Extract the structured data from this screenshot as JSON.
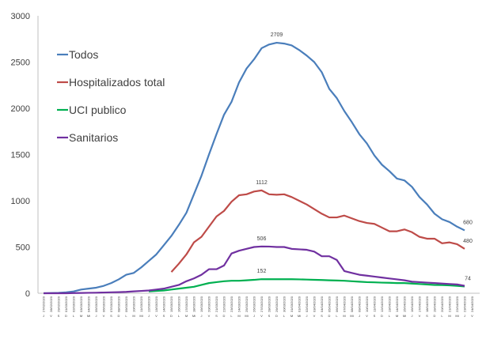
{
  "chart_data": {
    "type": "line",
    "categories": [
      "27/02/2020",
      "28/02/2020",
      "29/02/2020",
      "01/03/2020",
      "02/03/2020",
      "03/03/2020",
      "04/03/2020",
      "05/03/2020",
      "06/03/2020",
      "07/03/2020",
      "08/03/2020",
      "09/03/2020",
      "10/03/2020",
      "11/03/2020",
      "12/03/2020",
      "13/03/2020",
      "14/03/2020",
      "15/03/2020",
      "16/03/2020",
      "17/03/2020",
      "18/03/2020",
      "19/03/2020",
      "20/03/2020",
      "21/03/2020",
      "22/03/2020",
      "23/03/2020",
      "24/03/2020",
      "25/03/2020",
      "26/03/2020",
      "27/03/2020",
      "28/03/2020",
      "29/03/2020",
      "30/03/2020",
      "31/03/2020",
      "01/04/2020",
      "02/04/2020",
      "03/04/2020",
      "04/04/2020",
      "05/04/2020",
      "06/04/2020",
      "07/04/2020",
      "08/04/2020",
      "09/04/2020",
      "10/04/2020",
      "11/04/2020",
      "12/04/2020",
      "13/04/2020",
      "14/04/2020",
      "15/04/2020",
      "16/04/2020",
      "17/04/2020",
      "18/04/2020",
      "19/04/2020",
      "20/04/2020",
      "21/04/2020",
      "22/04/2020",
      "23/04/2020",
      "24/04/2020"
    ],
    "weekdays": [
      "J",
      "V",
      "S",
      "D",
      "L",
      "M",
      "Mi",
      "J",
      "V",
      "S",
      "D",
      "L",
      "M",
      "Mi",
      "J",
      "V",
      "S",
      "D",
      "L",
      "M",
      "Mi",
      "J",
      "V",
      "S",
      "D",
      "L",
      "M",
      "Mi",
      "J",
      "V",
      "S",
      "D",
      "L",
      "M",
      "Mi",
      "J",
      "V",
      "S",
      "D",
      "L",
      "M",
      "Mi",
      "J",
      "V",
      "S",
      "D",
      "L",
      "M",
      "Mi",
      "J",
      "V",
      "S",
      "D",
      "L",
      "M",
      "Mi",
      "J",
      "V"
    ],
    "series": [
      {
        "name": "Todos",
        "color": "#4a7ebb",
        "label_indices": [
          31,
          56
        ],
        "values": [
          0,
          2,
          5,
          10,
          20,
          40,
          50,
          60,
          80,
          110,
          150,
          200,
          220,
          280,
          350,
          420,
          520,
          620,
          740,
          870,
          1070,
          1270,
          1500,
          1720,
          1930,
          2070,
          2280,
          2430,
          2530,
          2650,
          2690,
          2709,
          2700,
          2680,
          2630,
          2570,
          2500,
          2390,
          2210,
          2110,
          1970,
          1850,
          1720,
          1620,
          1490,
          1390,
          1320,
          1240,
          1220,
          1150,
          1040,
          960,
          860,
          800,
          770,
          720,
          680,
          null
        ]
      },
      {
        "name": "Hospitalizados total",
        "color": "#be4b48",
        "label_indices": [
          29,
          56
        ],
        "values": [
          null,
          null,
          null,
          null,
          null,
          null,
          null,
          null,
          null,
          null,
          null,
          null,
          null,
          null,
          null,
          null,
          null,
          230,
          320,
          420,
          550,
          610,
          720,
          830,
          890,
          990,
          1060,
          1070,
          1100,
          1112,
          1070,
          1065,
          1070,
          1040,
          1000,
          960,
          910,
          860,
          820,
          820,
          840,
          810,
          780,
          760,
          750,
          710,
          670,
          670,
          690,
          660,
          610,
          590,
          590,
          540,
          550,
          530,
          480,
          null
        ]
      },
      {
        "name": "UCI publico",
        "color": "#00b050",
        "label_indices": [
          29,
          56
        ],
        "values": [
          null,
          null,
          null,
          null,
          null,
          null,
          null,
          null,
          null,
          null,
          null,
          null,
          null,
          null,
          20,
          25,
          30,
          40,
          50,
          60,
          70,
          90,
          110,
          120,
          130,
          135,
          135,
          140,
          145,
          152,
          152,
          152,
          152,
          152,
          150,
          148,
          145,
          143,
          140,
          138,
          135,
          130,
          125,
          120,
          118,
          115,
          113,
          110,
          110,
          105,
          100,
          95,
          90,
          88,
          85,
          80,
          74,
          null
        ]
      },
      {
        "name": "Sanitarios",
        "color": "#7030a0",
        "label_indices": [
          29
        ],
        "values": [
          0,
          0,
          0,
          0,
          2,
          3,
          5,
          6,
          8,
          10,
          12,
          15,
          20,
          25,
          30,
          40,
          50,
          70,
          90,
          130,
          160,
          200,
          260,
          260,
          300,
          430,
          460,
          480,
          500,
          506,
          505,
          500,
          500,
          480,
          475,
          470,
          450,
          400,
          400,
          360,
          240,
          220,
          200,
          190,
          180,
          170,
          160,
          150,
          140,
          125,
          120,
          115,
          110,
          105,
          100,
          95,
          80,
          null
        ]
      }
    ],
    "ylim": [
      0,
      3000
    ],
    "yticks": [
      0,
      500,
      1000,
      1500,
      2000,
      2500,
      3000
    ],
    "grid": false,
    "legend": "upper left"
  }
}
